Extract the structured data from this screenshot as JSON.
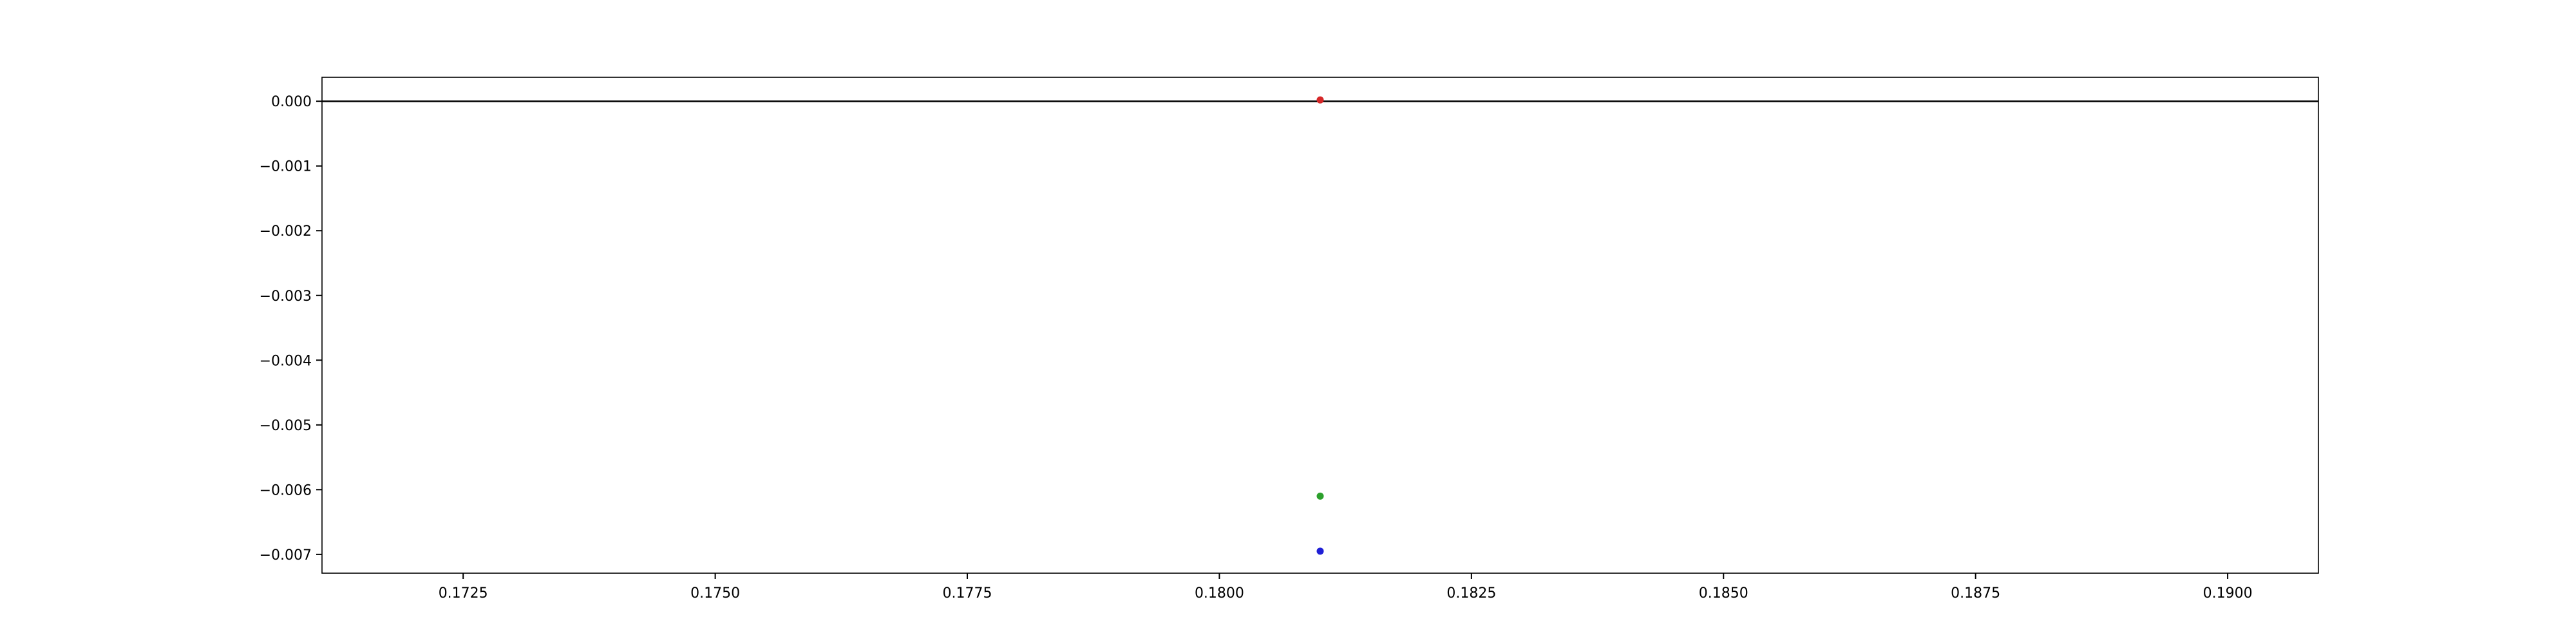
{
  "chart_data": {
    "type": "scatter",
    "title": "",
    "xlabel": "",
    "ylabel": "",
    "xlim": [
      0.1711,
      0.1909
    ],
    "ylim": [
      -0.00729,
      0.00037
    ],
    "grid": false,
    "x_ticks": [
      0.1725,
      0.175,
      0.1775,
      0.18,
      0.1825,
      0.185,
      0.1875,
      0.19
    ],
    "x_tick_labels": [
      "0.1725",
      "0.1750",
      "0.1775",
      "0.1800",
      "0.1825",
      "0.1850",
      "0.1875",
      "0.1900"
    ],
    "y_ticks": [
      0.0,
      -0.001,
      -0.002,
      -0.003,
      -0.004,
      -0.005,
      -0.006,
      -0.007
    ],
    "y_tick_labels": [
      "0.000",
      "−0.001",
      "−0.002",
      "−0.003",
      "−0.004",
      "−0.005",
      "−0.006",
      "−0.007"
    ],
    "hlines": [
      {
        "name": "zero-line",
        "y": 0.0,
        "color": "#000000"
      }
    ],
    "series": [
      {
        "name": "red-point",
        "color": "#d62728",
        "x": [
          0.181
        ],
        "y": [
          2e-05
        ]
      },
      {
        "name": "green-point",
        "color": "#2ca02c",
        "x": [
          0.181
        ],
        "y": [
          -0.0061
        ]
      },
      {
        "name": "blue-point",
        "color": "#1f1fd6",
        "x": [
          0.181
        ],
        "y": [
          -0.00695
        ]
      }
    ]
  }
}
